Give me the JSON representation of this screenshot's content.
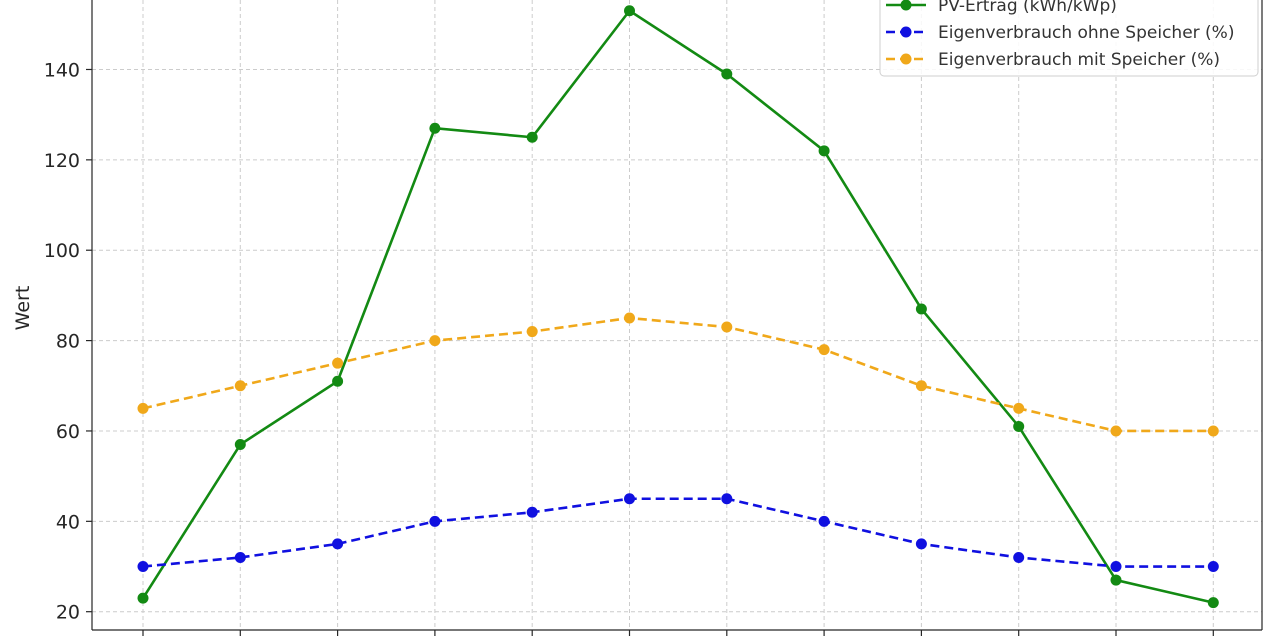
{
  "chart_data": {
    "type": "line",
    "title": "",
    "xlabel": "",
    "ylabel": "Wert",
    "categories": [
      "",
      "",
      "",
      "",
      "",
      "",
      "",
      "",
      "",
      "",
      "",
      ""
    ],
    "ylim": [
      18,
      155
    ],
    "yticks": [
      20,
      40,
      60,
      80,
      100,
      120,
      140
    ],
    "grid": true,
    "legend_position": "top-right",
    "series": [
      {
        "name": "PV-Ertrag (kWh/kWp)",
        "color": "#138a13",
        "style": "solid",
        "values": [
          23,
          57,
          71,
          127,
          125,
          153,
          139,
          122,
          87,
          61,
          27,
          22
        ]
      },
      {
        "name": "Eigenverbrauch ohne Speicher (%)",
        "color": "#1010e0",
        "style": "dashed",
        "values": [
          30,
          32,
          35,
          40,
          42,
          45,
          45,
          40,
          35,
          32,
          30,
          30
        ]
      },
      {
        "name": "Eigenverbrauch mit Speicher (%)",
        "color": "#f0a81a",
        "style": "dashed",
        "values": [
          65,
          70,
          75,
          80,
          82,
          85,
          83,
          78,
          70,
          65,
          60,
          60
        ]
      }
    ]
  }
}
